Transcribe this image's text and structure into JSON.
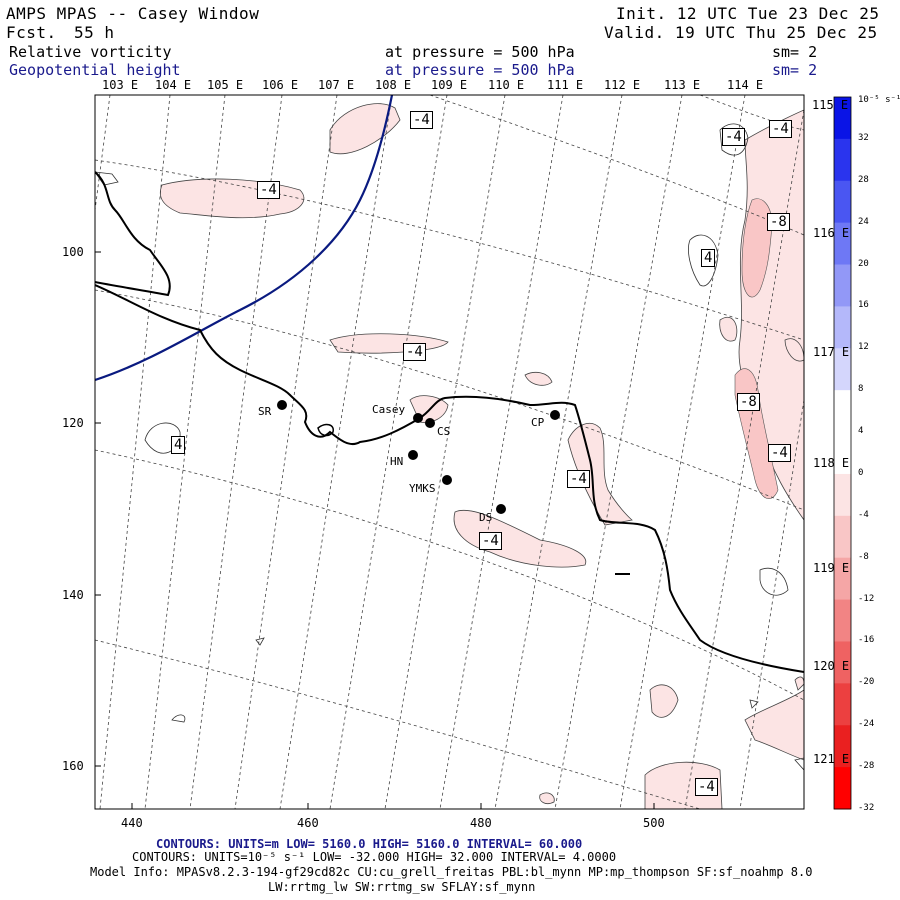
{
  "header": {
    "model": "AMPS MPAS -- Casey Window",
    "fcst_label": "Fcst.",
    "fcst_value": "55 h",
    "init": "Init. 12 UTC Tue 23 Dec 25",
    "valid": "Valid. 19 UTC Thu 25 Dec 25"
  },
  "fields": [
    {
      "name": "Relative vorticity",
      "pressure": "at pressure =  500 hPa",
      "sm": "sm= 2",
      "color": "#000000"
    },
    {
      "name": "Geopotential height",
      "pressure": "at pressure =  500 hPa",
      "sm": "sm= 2",
      "color": "#1a1a8c"
    }
  ],
  "lon_labels_top": [
    "103 E",
    "104 E",
    "105 E",
    "106 E",
    "107 E",
    "108 E",
    "109 E",
    "110 E",
    "111 E",
    "112 E",
    "113 E",
    "114 E"
  ],
  "lon_labels_right": [
    "115 E",
    "116 E",
    "117 E",
    "118 E",
    "119 E",
    "120 E",
    "121 E"
  ],
  "x_ticks": [
    "440",
    "460",
    "480",
    "500"
  ],
  "y_ticks": [
    "100",
    "120",
    "140",
    "160"
  ],
  "stations": [
    {
      "name": "SR"
    },
    {
      "name": "Casey"
    },
    {
      "name": "CS"
    },
    {
      "name": "CP"
    },
    {
      "name": "HN"
    },
    {
      "name": "YMKS"
    },
    {
      "name": "DS"
    }
  ],
  "contour_labels": [
    "-4",
    "-4",
    "-4",
    "-4",
    "-8",
    "4",
    "-4",
    "-8",
    "4",
    "-4",
    "-4",
    "-4",
    "-4"
  ],
  "colorbar": {
    "unit": "10⁻⁵ s⁻¹",
    "ticks": [
      "32",
      "28",
      "24",
      "20",
      "16",
      "12",
      "8",
      "4",
      "0",
      "-4",
      "-8",
      "-12",
      "-16",
      "-20",
      "-24",
      "-28",
      "-32"
    ],
    "colors": [
      "#0a14e6",
      "#2a34ee",
      "#4a56f2",
      "#6e78f5",
      "#9298f7",
      "#b4b8fa",
      "#d4d6fc",
      "#ffffff",
      "#ffffff",
      "#fce4e4",
      "#f9c6c6",
      "#f5a6a6",
      "#f28484",
      "#ef6262",
      "#ec4040",
      "#ea2020",
      "#ff0000"
    ]
  },
  "footer": {
    "line1": "CONTOURS:  UNITS=m  LOW=  5160.0          HIGH=  5160.0          INTERVAL=   60.000",
    "line2": "CONTOURS:  UNITS=10⁻⁵ s⁻¹   LOW= -32.000        HIGH=  32.000        INTERVAL=   4.0000",
    "line3": "Model Info: MPASv8.2.3-194-gf29cd82c CU:cu_grell_freitas PBL:bl_mynn MP:mp_thompson SF:sf_noahmp 8.0",
    "line4": "LW:rrtmg_lw SW:rrtmg_sw SFLAY:sf_mynn"
  }
}
